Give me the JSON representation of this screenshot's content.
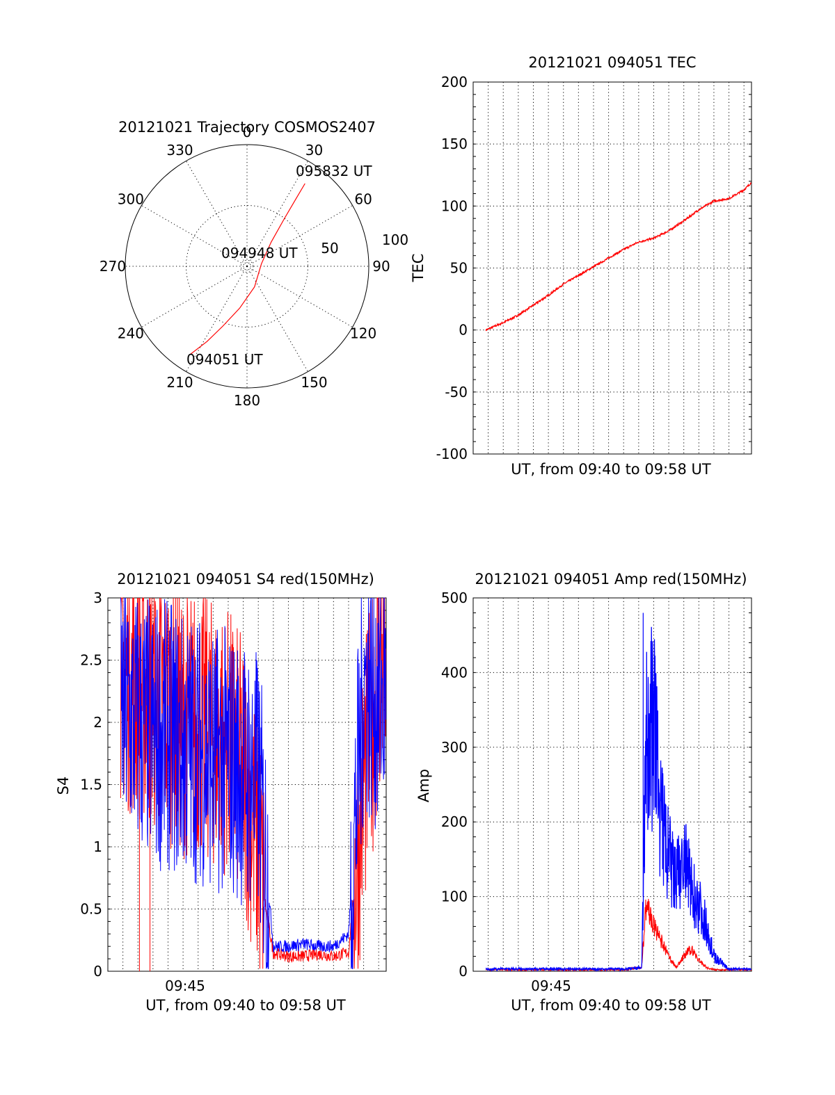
{
  "colors": {
    "red": "#ff0000",
    "blue": "#0000ff",
    "axis": "#000000"
  },
  "chart_data": [
    {
      "type": "polar",
      "title": "20121021 Trajectory COSMOS2407",
      "angle_labels": [
        "0",
        "30",
        "60",
        "90",
        "120",
        "150",
        "180",
        "210",
        "240",
        "270",
        "300",
        "330"
      ],
      "radius_labels": [
        "50",
        "100"
      ],
      "rmax": 100,
      "track": {
        "color": "red",
        "points": [
          {
            "az": 213,
            "r": 87
          },
          {
            "az": 208,
            "r": 70
          },
          {
            "az": 202,
            "r": 53
          },
          {
            "az": 190,
            "r": 35
          },
          {
            "az": 160,
            "r": 18
          },
          {
            "az": 80,
            "r": 12
          },
          {
            "az": 45,
            "r": 28
          },
          {
            "az": 38,
            "r": 50
          },
          {
            "az": 36,
            "r": 68
          },
          {
            "az": 35,
            "r": 83
          }
        ]
      },
      "annotations": [
        {
          "text": "095832 UT",
          "az": 35,
          "r": 83
        },
        {
          "text": "094948 UT",
          "az": 0,
          "r": 0
        },
        {
          "text": "094051 UT",
          "az": 213,
          "r": 87
        }
      ]
    },
    {
      "type": "line",
      "title": "20121021 094051 TEC",
      "xlabel": "UT, from 09:40 to 09:58 UT",
      "ylabel": "TEC",
      "ylim": [
        -100,
        200
      ],
      "yticks": [
        "-100",
        "-50",
        "0",
        "50",
        "100",
        "150",
        "200"
      ],
      "grid": true,
      "series": [
        {
          "color": "red",
          "t_start": "09:40:51",
          "t_end": "09:58:32",
          "x_minutes": [
            0.85,
            2,
            3,
            4,
            5,
            6,
            7,
            8,
            9,
            10,
            11,
            12,
            13,
            14,
            15,
            16,
            17,
            18,
            18.5
          ],
          "y": [
            0,
            6,
            12,
            20,
            28,
            37,
            44,
            51,
            58,
            65,
            71,
            74,
            80,
            88,
            97,
            104,
            106,
            113,
            119
          ]
        }
      ]
    },
    {
      "type": "line",
      "title": "20121021 094051 S4 red(150MHz)",
      "xlabel": "UT, from 09:40 to 09:58 UT",
      "ylabel": "S4",
      "ylim": [
        0,
        3
      ],
      "yticks": [
        "0",
        "0.5",
        "1",
        "1.5",
        "2",
        "2.5",
        "3"
      ],
      "xtick_label": "09:45",
      "grid": true,
      "series": [
        {
          "color": "red",
          "x_minutes": [
            0.85,
            2,
            3,
            4,
            5,
            6,
            7,
            8,
            9,
            10,
            10.5,
            11,
            12,
            13,
            14,
            15,
            16,
            17,
            18,
            18.5
          ],
          "y": [
            2.4,
            2.3,
            2.2,
            2.1,
            2.0,
            2.0,
            1.9,
            1.85,
            1.6,
            1.0,
            0.5,
            0.15,
            0.12,
            0.12,
            0.14,
            0.12,
            0.15,
            1.5,
            2.4,
            2.6
          ]
        },
        {
          "color": "blue",
          "x_minutes": [
            0.85,
            2,
            3,
            4,
            5,
            6,
            7,
            8,
            9,
            10,
            10.5,
            11,
            12,
            13,
            14,
            15,
            16,
            17,
            18,
            18.5
          ],
          "y": [
            2.1,
            2.0,
            1.9,
            1.9,
            1.8,
            1.8,
            1.7,
            1.7,
            1.6,
            1.5,
            0.9,
            0.2,
            0.2,
            0.22,
            0.2,
            0.2,
            0.3,
            2.3,
            2.2,
            2.3
          ]
        }
      ]
    },
    {
      "type": "line",
      "title": "20121021 094051 Amp red(150MHz)",
      "xlabel": "UT, from 09:40 to 09:58 UT",
      "ylabel": "Amp",
      "ylim": [
        0,
        500
      ],
      "yticks": [
        "0",
        "100",
        "200",
        "300",
        "400",
        "500"
      ],
      "xtick_label": "09:45",
      "grid": true,
      "series": [
        {
          "color": "red",
          "x_minutes": [
            0.85,
            5,
            10,
            11.2,
            11.5,
            12,
            12.5,
            13,
            13.5,
            14,
            14.5,
            15,
            15.5,
            16,
            17,
            18.5
          ],
          "y": [
            2,
            2,
            2,
            5,
            90,
            60,
            40,
            20,
            5,
            20,
            30,
            15,
            5,
            2,
            2,
            2
          ]
        },
        {
          "color": "blue",
          "x_minutes": [
            0.85,
            5,
            10,
            11.2,
            11.5,
            12,
            12.5,
            13,
            13.5,
            14,
            14.5,
            15,
            15.5,
            16,
            17,
            18.5
          ],
          "y": [
            3,
            3,
            3,
            5,
            300,
            330,
            200,
            150,
            120,
            150,
            110,
            90,
            60,
            20,
            3,
            3
          ]
        }
      ]
    }
  ]
}
